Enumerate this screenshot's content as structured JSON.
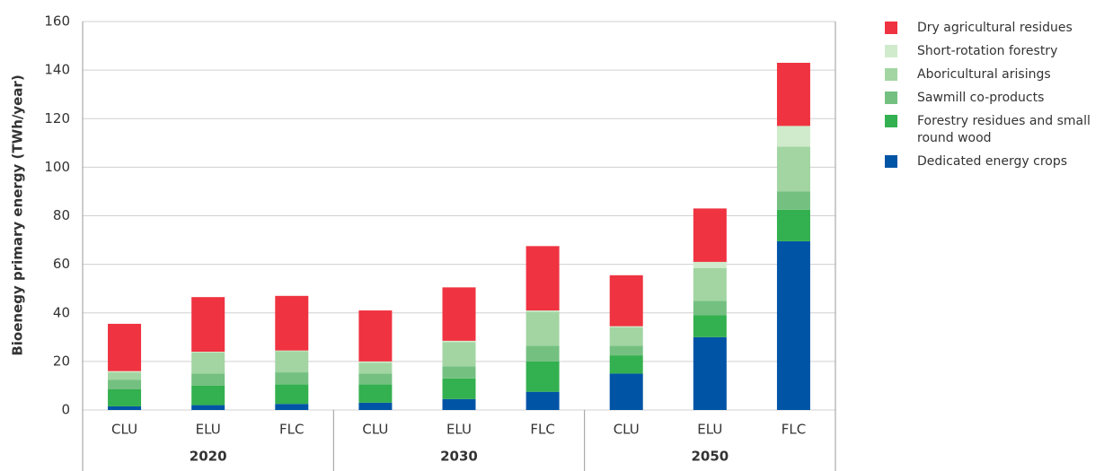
{
  "chart_data": {
    "type": "bar",
    "stacked": true,
    "y_label": "Bioenegy primary energy (TWh/year)",
    "categories": [
      "CLU",
      "ELU",
      "FLC",
      "CLU",
      "ELU",
      "FLC",
      "CLU",
      "ELU",
      "FLC"
    ],
    "groups": [
      "2020",
      "2030",
      "2050"
    ],
    "ylim": [
      0,
      160
    ],
    "yticks": [
      0,
      20,
      40,
      60,
      80,
      100,
      120,
      140,
      160
    ],
    "grid": true,
    "series": [
      {
        "name": "Dedicated energy crops",
        "color": "#0054a6",
        "values": [
          1.5,
          2,
          2.5,
          3,
          4.5,
          7.5,
          15,
          30,
          69.5
        ]
      },
      {
        "name": "Forestry residues and small round wood",
        "color": "#33b04f",
        "values": [
          7,
          8,
          8,
          7.5,
          8.5,
          12.5,
          7.5,
          9,
          13
        ]
      },
      {
        "name": "Sawmill co-products",
        "color": "#74c080",
        "values": [
          4,
          5,
          5,
          4.5,
          5,
          6.5,
          4,
          6,
          7.5
        ]
      },
      {
        "name": "Aboricultural arisings",
        "color": "#a2d5a2",
        "values": [
          3,
          8.7,
          8.7,
          4.5,
          10,
          14,
          7.5,
          13.5,
          18.5
        ]
      },
      {
        "name": "Short-rotation forestry",
        "color": "#d0ebcc",
        "values": [
          0.5,
          0.3,
          0.3,
          0.5,
          0.5,
          0.5,
          0.5,
          2.5,
          8.5
        ]
      },
      {
        "name": "Dry agricultural residues",
        "color": "#ef3340",
        "values": [
          19.5,
          22.5,
          22.5,
          21,
          22,
          26.5,
          21,
          22,
          26
        ]
      }
    ]
  }
}
